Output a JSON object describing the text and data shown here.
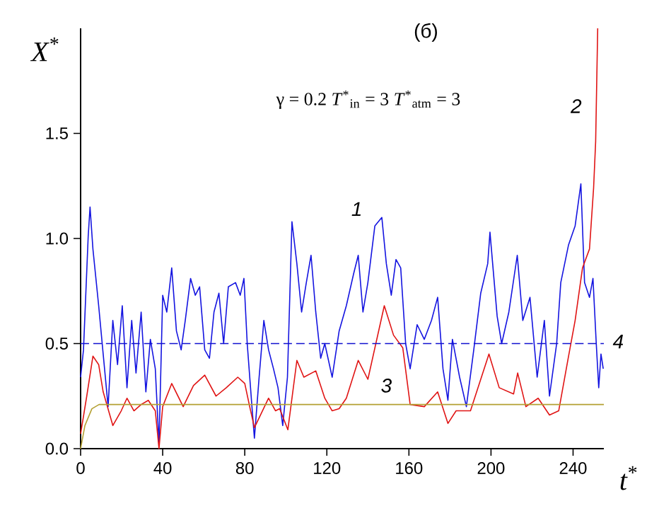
{
  "chart_data": {
    "type": "line",
    "title": "(б)",
    "annotations": [
      "γ = 0.2   *T*$^{*}$$_{in}$ = 3   *T*$^{*}$$_{atm}$ = 3"
    ],
    "xlabel": "*t*$^{*}$",
    "ylabel": "*X*$^{*}$",
    "xlim": [
      0,
      255
    ],
    "ylim": [
      0,
      2.0
    ],
    "xticks": [
      0,
      40,
      80,
      120,
      160,
      200,
      240
    ],
    "yticks": [
      {
        "value": 0,
        "label": "0.0"
      },
      {
        "value": 0.5,
        "label": "0.5"
      },
      {
        "value": 1.0,
        "label": "1.0"
      },
      {
        "value": 1.5,
        "label": "1.5"
      }
    ],
    "grid": false,
    "legend": false,
    "marker": "none",
    "line_style": "solid",
    "series": [
      {
        "name": "1",
        "color": "#1414e0",
        "x": [
          0,
          1.4,
          3.7,
          4.6,
          6,
          8.8,
          11,
          13.4,
          15.7,
          18,
          20.3,
          22.6,
          24.9,
          27,
          29.5,
          31.8,
          34,
          36.4,
          38.2,
          40,
          42,
          44.4,
          46.7,
          49,
          51,
          53.6,
          55.9,
          58,
          60.5,
          62.8,
          65,
          67.4,
          69.7,
          72,
          75.5,
          77.8,
          79.6,
          81.2,
          83.5,
          84.7,
          87,
          89.3,
          91.6,
          94,
          96.2,
          98.5,
          100.8,
          103,
          105.4,
          107.7,
          110,
          112.3,
          114.6,
          117,
          119,
          122.6,
          126,
          129.5,
          133,
          135.3,
          137.6,
          140,
          143.4,
          146.8,
          149,
          151.4,
          153.7,
          156,
          158.4,
          160.6,
          164,
          167.5,
          171,
          174,
          176.6,
          179,
          181.2,
          184.7,
          188,
          191.6,
          195,
          198.4,
          199.5,
          203,
          205.2,
          208.7,
          212.8,
          215.5,
          219,
          222.5,
          226,
          228.5,
          232,
          234,
          237.8,
          241,
          243.8,
          245.6,
          248,
          249.7,
          251.3,
          252.5,
          253.6,
          254.7
        ],
        "values": [
          0.34,
          0.47,
          1.01,
          1.15,
          0.95,
          0.68,
          0.45,
          0.2,
          0.61,
          0.4,
          0.68,
          0.29,
          0.61,
          0.36,
          0.65,
          0.27,
          0.52,
          0.38,
          0.02,
          0.73,
          0.65,
          0.86,
          0.56,
          0.47,
          0.61,
          0.81,
          0.73,
          0.77,
          0.47,
          0.43,
          0.65,
          0.74,
          0.5,
          0.77,
          0.79,
          0.73,
          0.81,
          0.5,
          0.2,
          0.05,
          0.34,
          0.61,
          0.47,
          0.38,
          0.29,
          0.11,
          0.34,
          1.08,
          0.88,
          0.65,
          0.79,
          0.92,
          0.65,
          0.43,
          0.5,
          0.34,
          0.56,
          0.68,
          0.83,
          0.92,
          0.65,
          0.79,
          1.06,
          1.1,
          0.88,
          0.73,
          0.9,
          0.86,
          0.5,
          0.38,
          0.59,
          0.52,
          0.61,
          0.72,
          0.38,
          0.23,
          0.52,
          0.34,
          0.2,
          0.47,
          0.74,
          0.88,
          1.03,
          0.63,
          0.5,
          0.65,
          0.92,
          0.61,
          0.72,
          0.34,
          0.61,
          0.25,
          0.5,
          0.79,
          0.97,
          1.06,
          1.26,
          0.79,
          0.72,
          0.81,
          0.5,
          0.29,
          0.45,
          0.38
        ]
      },
      {
        "name": "2",
        "color": "#e01414",
        "x": [
          0,
          3,
          6,
          8.8,
          11,
          15.7,
          19.8,
          22.6,
          26,
          29.5,
          33,
          36.4,
          38.2,
          40,
          44.4,
          50,
          55,
          60.5,
          66,
          71,
          76.6,
          80,
          82.4,
          84.7,
          91.6,
          95,
          97,
          101,
          105.4,
          108.8,
          114.6,
          119,
          122.6,
          126,
          129.5,
          135.3,
          140,
          148,
          152.5,
          157,
          160.6,
          167.5,
          174,
          179,
          183,
          190,
          199,
          204,
          211,
          213,
          217,
          223,
          228.5,
          233,
          237.8,
          241,
          244.6,
          248,
          250,
          251,
          252
        ],
        "values": [
          0.07,
          0.25,
          0.44,
          0.4,
          0.27,
          0.11,
          0.18,
          0.24,
          0.18,
          0.21,
          0.23,
          0.18,
          0.0,
          0.2,
          0.31,
          0.2,
          0.3,
          0.35,
          0.25,
          0.29,
          0.34,
          0.31,
          0.2,
          0.1,
          0.24,
          0.18,
          0.19,
          0.09,
          0.42,
          0.34,
          0.37,
          0.24,
          0.18,
          0.19,
          0.24,
          0.42,
          0.33,
          0.68,
          0.54,
          0.48,
          0.21,
          0.2,
          0.27,
          0.12,
          0.18,
          0.18,
          0.45,
          0.29,
          0.26,
          0.36,
          0.2,
          0.24,
          0.16,
          0.18,
          0.44,
          0.61,
          0.86,
          0.95,
          1.24,
          1.46,
          2.0
        ]
      },
      {
        "name": "3",
        "color": "#b4a032",
        "x": [
          0,
          2.1,
          5.5,
          9,
          255
        ],
        "values": [
          0,
          0.11,
          0.19,
          0.21,
          0.21
        ]
      },
      {
        "name": "4",
        "color": "#1010d0",
        "line_style": "dashed",
        "x": [
          0,
          255
        ],
        "values": [
          0.5,
          0.5
        ]
      }
    ]
  }
}
